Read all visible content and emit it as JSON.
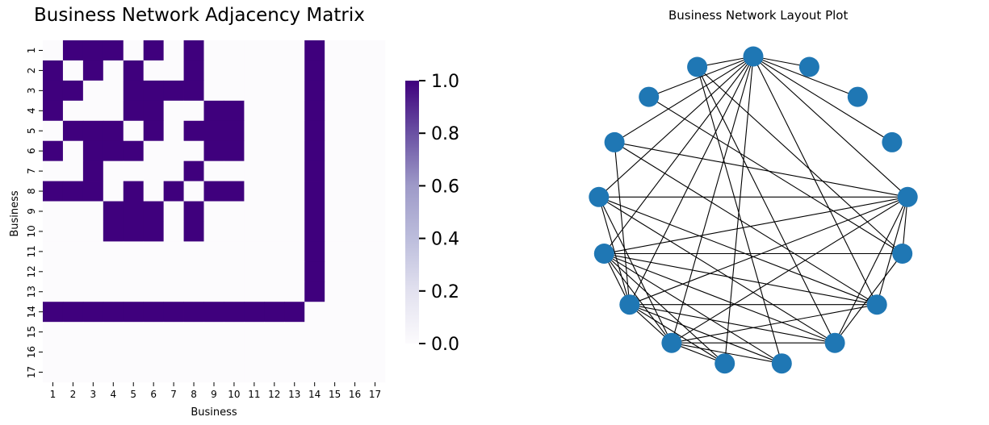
{
  "chart_data": [
    {
      "type": "heatmap",
      "title": "Business Network Adjacency Matrix",
      "xlabel": "Business",
      "ylabel": "Business",
      "x_categories": [
        "1",
        "2",
        "3",
        "4",
        "5",
        "6",
        "7",
        "8",
        "9",
        "10",
        "11",
        "12",
        "13",
        "14",
        "15",
        "16",
        "17"
      ],
      "y_categories": [
        "1",
        "2",
        "3",
        "4",
        "5",
        "6",
        "7",
        "8",
        "9",
        "10",
        "11",
        "12",
        "13",
        "14",
        "15",
        "16",
        "17"
      ],
      "values": [
        [
          0,
          1,
          1,
          1,
          0,
          1,
          0,
          1,
          0,
          0,
          0,
          0,
          0,
          1,
          0,
          0,
          0
        ],
        [
          1,
          0,
          1,
          0,
          1,
          0,
          0,
          1,
          0,
          0,
          0,
          0,
          0,
          1,
          0,
          0,
          0
        ],
        [
          1,
          1,
          0,
          0,
          1,
          1,
          1,
          1,
          0,
          0,
          0,
          0,
          0,
          1,
          0,
          0,
          0
        ],
        [
          1,
          0,
          0,
          0,
          1,
          1,
          0,
          0,
          1,
          1,
          0,
          0,
          0,
          1,
          0,
          0,
          0
        ],
        [
          0,
          1,
          1,
          1,
          0,
          1,
          0,
          1,
          1,
          1,
          0,
          0,
          0,
          1,
          0,
          0,
          0
        ],
        [
          1,
          0,
          1,
          1,
          1,
          0,
          0,
          0,
          1,
          1,
          0,
          0,
          0,
          1,
          0,
          0,
          0
        ],
        [
          0,
          0,
          1,
          0,
          0,
          0,
          0,
          1,
          0,
          0,
          0,
          0,
          0,
          1,
          0,
          0,
          0
        ],
        [
          1,
          1,
          1,
          0,
          1,
          0,
          1,
          0,
          1,
          1,
          0,
          0,
          0,
          1,
          0,
          0,
          0
        ],
        [
          0,
          0,
          0,
          1,
          1,
          1,
          0,
          1,
          0,
          0,
          0,
          0,
          0,
          1,
          0,
          0,
          0
        ],
        [
          0,
          0,
          0,
          1,
          1,
          1,
          0,
          1,
          0,
          0,
          0,
          0,
          0,
          1,
          0,
          0,
          0
        ],
        [
          0,
          0,
          0,
          0,
          0,
          0,
          0,
          0,
          0,
          0,
          0,
          0,
          0,
          1,
          0,
          0,
          0
        ],
        [
          0,
          0,
          0,
          0,
          0,
          0,
          0,
          0,
          0,
          0,
          0,
          0,
          0,
          1,
          0,
          0,
          0
        ],
        [
          0,
          0,
          0,
          0,
          0,
          0,
          0,
          0,
          0,
          0,
          0,
          0,
          0,
          1,
          0,
          0,
          0
        ],
        [
          1,
          1,
          1,
          1,
          1,
          1,
          1,
          1,
          1,
          1,
          1,
          1,
          1,
          0,
          0,
          0,
          0
        ],
        [
          0,
          0,
          0,
          0,
          0,
          0,
          0,
          0,
          0,
          0,
          0,
          0,
          0,
          0,
          0,
          0,
          0
        ],
        [
          0,
          0,
          0,
          0,
          0,
          0,
          0,
          0,
          0,
          0,
          0,
          0,
          0,
          0,
          0,
          0,
          0
        ],
        [
          0,
          0,
          0,
          0,
          0,
          0,
          0,
          0,
          0,
          0,
          0,
          0,
          0,
          0,
          0,
          0,
          0
        ]
      ],
      "colorbar": {
        "range": [
          0.0,
          1.0
        ],
        "ticks": [
          "0.0",
          "0.2",
          "0.4",
          "0.6",
          "0.8",
          "1.0"
        ],
        "colormap": "Purples"
      },
      "colors": {
        "low": "#fcfbfd",
        "high": "#3f007d"
      }
    },
    {
      "type": "network",
      "title": "Business Network Layout Plot",
      "layout": "circular",
      "node_count": 17,
      "edges": [
        [
          0,
          1
        ],
        [
          0,
          2
        ],
        [
          0,
          3
        ],
        [
          0,
          4
        ],
        [
          0,
          6
        ],
        [
          0,
          9
        ],
        [
          0,
          10
        ],
        [
          0,
          11
        ],
        [
          0,
          12
        ],
        [
          0,
          13
        ],
        [
          0,
          14
        ],
        [
          0,
          15
        ],
        [
          0,
          16
        ],
        [
          4,
          7
        ],
        [
          4,
          5
        ],
        [
          4,
          6
        ],
        [
          4,
          10
        ],
        [
          4,
          11
        ],
        [
          4,
          12
        ],
        [
          4,
          13
        ],
        [
          4,
          14
        ],
        [
          5,
          7
        ],
        [
          5,
          12
        ],
        [
          5,
          15
        ],
        [
          5,
          16
        ],
        [
          6,
          10
        ],
        [
          6,
          11
        ],
        [
          6,
          12
        ],
        [
          6,
          13
        ],
        [
          6,
          14
        ],
        [
          7,
          10
        ],
        [
          7,
          11
        ],
        [
          7,
          12
        ],
        [
          7,
          13
        ],
        [
          7,
          16
        ],
        [
          8,
          10
        ],
        [
          8,
          11
        ],
        [
          8,
          12
        ],
        [
          8,
          16
        ],
        [
          9,
          10
        ],
        [
          9,
          11
        ],
        [
          9,
          12
        ],
        [
          10,
          11
        ],
        [
          10,
          12
        ],
        [
          10,
          13
        ],
        [
          11,
          12
        ],
        [
          11,
          13
        ],
        [
          11,
          14
        ]
      ],
      "colors": {
        "node": "#1f77b4",
        "edge": "#000000"
      }
    }
  ]
}
